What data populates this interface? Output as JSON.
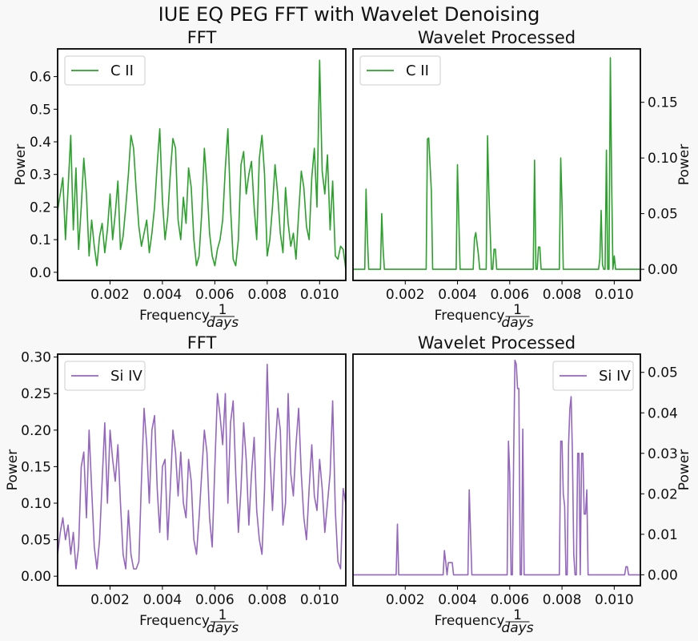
{
  "figure": {
    "title": "IUE EQ PEG FFT with Wavelet Denoising"
  },
  "colors": {
    "c2": "#2ca02c",
    "si4": "#9467bd"
  },
  "chart_data": [
    {
      "type": "line",
      "title": "FFT",
      "xlabel": "Frequency",
      "xlabel_fraction": {
        "num": "1",
        "den": "days"
      },
      "ylabel": "Power",
      "ylabel_side": "left",
      "xlim": [
        0.0,
        0.011
      ],
      "ylim": [
        -0.025,
        0.685
      ],
      "xticks": [
        0.002,
        0.004,
        0.006,
        0.008,
        0.01
      ],
      "xtick_labels": [
        "0.002",
        "0.004",
        "0.006",
        "0.008",
        "0.010"
      ],
      "yticks": [
        0.0,
        0.1,
        0.2,
        0.3,
        0.4,
        0.5,
        0.6
      ],
      "ytick_labels": [
        "0.0",
        "0.1",
        "0.2",
        "0.3",
        "0.4",
        "0.5",
        "0.6"
      ],
      "legend_position": "top-left",
      "series": [
        {
          "name": "C II",
          "color": "#2ca02c",
          "x": [
            0.0,
            0.0002,
            0.0003,
            0.0004,
            0.0005,
            0.0006,
            0.0007,
            0.0008,
            0.0009,
            0.001,
            0.0011,
            0.0012,
            0.0013,
            0.0014,
            0.0015,
            0.0016,
            0.0017,
            0.0018,
            0.0019,
            0.002,
            0.0021,
            0.0022,
            0.0023,
            0.0024,
            0.0025,
            0.0026,
            0.0027,
            0.0028,
            0.0029,
            0.003,
            0.0031,
            0.0032,
            0.0033,
            0.0034,
            0.0035,
            0.0036,
            0.0037,
            0.0038,
            0.0039,
            0.004,
            0.0041,
            0.0042,
            0.0043,
            0.0044,
            0.0045,
            0.0046,
            0.0047,
            0.0048,
            0.0049,
            0.005,
            0.0051,
            0.0052,
            0.0053,
            0.0054,
            0.0055,
            0.0056,
            0.0057,
            0.0058,
            0.0059,
            0.006,
            0.0061,
            0.0062,
            0.0063,
            0.0064,
            0.0065,
            0.0066,
            0.0067,
            0.0068,
            0.0069,
            0.007,
            0.0071,
            0.0072,
            0.0073,
            0.0074,
            0.0075,
            0.0076,
            0.0077,
            0.0078,
            0.0079,
            0.008,
            0.0081,
            0.0082,
            0.0083,
            0.0084,
            0.0085,
            0.0086,
            0.0087,
            0.0088,
            0.0089,
            0.009,
            0.0091,
            0.0092,
            0.0093,
            0.0094,
            0.0095,
            0.0096,
            0.0097,
            0.0098,
            0.0099,
            0.01,
            0.0101,
            0.0102,
            0.0103,
            0.0104,
            0.0105,
            0.0106,
            0.0107,
            0.0108,
            0.0109,
            0.011
          ],
          "y": [
            0.19,
            0.29,
            0.1,
            0.26,
            0.42,
            0.13,
            0.32,
            0.07,
            0.2,
            0.35,
            0.24,
            0.05,
            0.16,
            0.08,
            0.02,
            0.11,
            0.15,
            0.06,
            0.13,
            0.24,
            0.1,
            0.18,
            0.28,
            0.07,
            0.11,
            0.2,
            0.3,
            0.42,
            0.38,
            0.25,
            0.14,
            0.08,
            0.12,
            0.16,
            0.06,
            0.12,
            0.2,
            0.33,
            0.44,
            0.22,
            0.1,
            0.17,
            0.3,
            0.41,
            0.38,
            0.16,
            0.1,
            0.23,
            0.15,
            0.32,
            0.26,
            0.1,
            0.02,
            0.05,
            0.18,
            0.38,
            0.27,
            0.12,
            0.05,
            0.02,
            0.07,
            0.1,
            0.16,
            0.32,
            0.44,
            0.2,
            0.04,
            0.02,
            0.1,
            0.33,
            0.37,
            0.24,
            0.3,
            0.34,
            0.2,
            0.1,
            0.35,
            0.42,
            0.3,
            0.05,
            0.1,
            0.2,
            0.33,
            0.24,
            0.12,
            0.06,
            0.26,
            0.15,
            0.08,
            0.12,
            0.04,
            0.18,
            0.31,
            0.26,
            0.14,
            0.1,
            0.29,
            0.38,
            0.2,
            0.65,
            0.31,
            0.24,
            0.36,
            0.13,
            0.28,
            0.05,
            0.04,
            0.08,
            0.07,
            0.01
          ]
        }
      ]
    },
    {
      "type": "line",
      "title": "Wavelet Processed",
      "xlabel": "Frequency",
      "xlabel_fraction": {
        "num": "1",
        "den": "days"
      },
      "ylabel": "Power",
      "ylabel_side": "right",
      "xlim": [
        0.0,
        0.011
      ],
      "ylim": [
        -0.01,
        0.198
      ],
      "xticks": [
        0.002,
        0.004,
        0.006,
        0.008,
        0.01
      ],
      "xtick_labels": [
        "0.002",
        "0.004",
        "0.006",
        "0.008",
        "0.010"
      ],
      "yticks": [
        0.0,
        0.05,
        0.1,
        0.15
      ],
      "ytick_labels": [
        "0.00",
        "0.05",
        "0.10",
        "0.15"
      ],
      "legend_position": "top-left",
      "series": [
        {
          "name": "C II",
          "color": "#2ca02c",
          "x": [
            0.0,
            0.00045,
            0.0005,
            0.00055,
            0.0006,
            0.00105,
            0.0011,
            0.00115,
            0.0012,
            0.0028,
            0.00285,
            0.0029,
            0.003,
            0.00305,
            0.00395,
            0.004,
            0.00405,
            0.0041,
            0.0046,
            0.00465,
            0.0047,
            0.0048,
            0.00485,
            0.0051,
            0.00515,
            0.0052,
            0.0053,
            0.00535,
            0.0054,
            0.00545,
            0.0055,
            0.00555,
            0.0069,
            0.00695,
            0.007,
            0.00705,
            0.0071,
            0.00715,
            0.0072,
            0.00725,
            0.0079,
            0.00795,
            0.008,
            0.00805,
            0.0094,
            0.00945,
            0.0095,
            0.00955,
            0.0096,
            0.00965,
            0.0097,
            0.00975,
            0.0098,
            0.00985,
            0.0099,
            0.00995,
            0.01,
            0.01005,
            0.0101,
            0.01015,
            0.0102,
            0.01025,
            0.011
          ],
          "y": [
            0.0,
            0.0,
            0.072,
            0.03,
            0.0,
            0.0,
            0.05,
            0.02,
            0.0,
            0.0,
            0.117,
            0.118,
            0.07,
            0.0,
            0.0,
            0.094,
            0.045,
            0.0,
            0.0,
            0.028,
            0.033,
            0.013,
            0.0,
            0.0,
            0.12,
            0.07,
            0.0,
            0.0,
            0.018,
            0.018,
            0.0,
            0.0,
            0.0,
            0.098,
            0.0,
            0.0,
            0.02,
            0.02,
            0.0,
            0.0,
            0.0,
            0.1,
            0.06,
            0.0,
            0.0,
            0.01,
            0.053,
            0.004,
            0.0,
            0.0,
            0.107,
            0.0,
            0.0,
            0.19,
            0.08,
            0.0,
            0.012,
            0.0,
            0.0,
            0.0,
            0.0,
            0.0,
            0.0
          ]
        }
      ]
    },
    {
      "type": "line",
      "title": "FFT",
      "xlabel": "Frequency",
      "xlabel_fraction": {
        "num": "1",
        "den": "days"
      },
      "ylabel": "Power",
      "ylabel_side": "left",
      "xlim": [
        0.0,
        0.011
      ],
      "ylim": [
        -0.013,
        0.304
      ],
      "xticks": [
        0.002,
        0.004,
        0.006,
        0.008,
        0.01
      ],
      "xtick_labels": [
        "0.002",
        "0.004",
        "0.006",
        "0.008",
        "0.010"
      ],
      "yticks": [
        0.0,
        0.05,
        0.1,
        0.15,
        0.2,
        0.25,
        0.3
      ],
      "ytick_labels": [
        "0.00",
        "0.05",
        "0.10",
        "0.15",
        "0.20",
        "0.25",
        "0.30"
      ],
      "legend_position": "top-left",
      "series": [
        {
          "name": "Si IV",
          "color": "#9467bd",
          "x": [
            0.0,
            0.0001,
            0.0002,
            0.0003,
            0.0004,
            0.0005,
            0.0006,
            0.0007,
            0.0008,
            0.0009,
            0.001,
            0.0011,
            0.0012,
            0.0013,
            0.0014,
            0.0015,
            0.0016,
            0.0017,
            0.0018,
            0.0019,
            0.002,
            0.0021,
            0.0022,
            0.0023,
            0.0024,
            0.0025,
            0.0026,
            0.0027,
            0.0028,
            0.0029,
            0.003,
            0.0031,
            0.0032,
            0.0033,
            0.0034,
            0.0035,
            0.0036,
            0.0037,
            0.0038,
            0.0039,
            0.004,
            0.0041,
            0.0042,
            0.0043,
            0.0044,
            0.0045,
            0.0046,
            0.0047,
            0.0048,
            0.0049,
            0.005,
            0.0051,
            0.0052,
            0.0053,
            0.0054,
            0.0055,
            0.0056,
            0.0057,
            0.0058,
            0.0059,
            0.006,
            0.0061,
            0.0062,
            0.0063,
            0.0064,
            0.0065,
            0.0066,
            0.0067,
            0.0068,
            0.0069,
            0.007,
            0.0071,
            0.0072,
            0.0073,
            0.0074,
            0.0075,
            0.0076,
            0.0077,
            0.0078,
            0.0079,
            0.008,
            0.0081,
            0.0082,
            0.0083,
            0.0084,
            0.0085,
            0.0086,
            0.0087,
            0.0088,
            0.0089,
            0.009,
            0.0091,
            0.0092,
            0.0093,
            0.0094,
            0.0095,
            0.0096,
            0.0097,
            0.0098,
            0.0099,
            0.01,
            0.0101,
            0.0102,
            0.0103,
            0.0104,
            0.0105,
            0.0106,
            0.0107,
            0.0108,
            0.0109,
            0.011
          ],
          "y": [
            0.03,
            0.06,
            0.08,
            0.05,
            0.07,
            0.03,
            0.06,
            0.01,
            0.04,
            0.15,
            0.17,
            0.08,
            0.2,
            0.12,
            0.04,
            0.01,
            0.05,
            0.13,
            0.21,
            0.1,
            0.2,
            0.16,
            0.13,
            0.18,
            0.1,
            0.03,
            0.01,
            0.09,
            0.03,
            0.01,
            0.01,
            0.02,
            0.13,
            0.23,
            0.18,
            0.1,
            0.2,
            0.22,
            0.12,
            0.06,
            0.15,
            0.16,
            0.05,
            0.12,
            0.2,
            0.17,
            0.11,
            0.17,
            0.1,
            0.08,
            0.16,
            0.13,
            0.05,
            0.03,
            0.08,
            0.14,
            0.2,
            0.17,
            0.08,
            0.04,
            0.15,
            0.25,
            0.22,
            0.18,
            0.25,
            0.1,
            0.21,
            0.24,
            0.14,
            0.06,
            0.12,
            0.21,
            0.16,
            0.07,
            0.14,
            0.19,
            0.09,
            0.05,
            0.03,
            0.12,
            0.29,
            0.17,
            0.09,
            0.17,
            0.23,
            0.2,
            0.07,
            0.1,
            0.25,
            0.14,
            0.11,
            0.18,
            0.23,
            0.14,
            0.08,
            0.05,
            0.12,
            0.18,
            0.11,
            0.09,
            0.16,
            0.12,
            0.06,
            0.1,
            0.14,
            0.24,
            0.09,
            0.02,
            0.01,
            0.12,
            0.1
          ]
        }
      ]
    },
    {
      "type": "line",
      "title": "Wavelet Processed",
      "xlabel": "Frequency",
      "xlabel_fraction": {
        "num": "1",
        "den": "days"
      },
      "ylabel": "Power",
      "ylabel_side": "right",
      "xlim": [
        0.0,
        0.011
      ],
      "ylim": [
        -0.0027,
        0.0545
      ],
      "xticks": [
        0.002,
        0.004,
        0.006,
        0.008,
        0.01
      ],
      "xtick_labels": [
        "0.002",
        "0.004",
        "0.006",
        "0.008",
        "0.010"
      ],
      "yticks": [
        0.0,
        0.01,
        0.02,
        0.03,
        0.04,
        0.05
      ],
      "ytick_labels": [
        "0.00",
        "0.01",
        "0.02",
        "0.03",
        "0.04",
        "0.05"
      ],
      "legend_position": "top-right",
      "series": [
        {
          "name": "Si IV",
          "color": "#9467bd",
          "x": [
            0.0,
            0.00165,
            0.0017,
            0.00175,
            0.0018,
            0.00345,
            0.0035,
            0.00355,
            0.0036,
            0.00365,
            0.0037,
            0.0038,
            0.00385,
            0.0044,
            0.00445,
            0.0045,
            0.00455,
            0.0059,
            0.00595,
            0.006,
            0.00605,
            0.0061,
            0.00615,
            0.0062,
            0.00625,
            0.0063,
            0.00635,
            0.0064,
            0.00645,
            0.0065,
            0.00655,
            0.0066,
            0.00665,
            0.0079,
            0.00795,
            0.008,
            0.00805,
            0.0081,
            0.00815,
            0.0082,
            0.00825,
            0.0083,
            0.00835,
            0.0084,
            0.00845,
            0.0085,
            0.00855,
            0.0086,
            0.00865,
            0.0087,
            0.00875,
            0.0088,
            0.00885,
            0.0089,
            0.00895,
            0.009,
            0.00905,
            0.0091,
            0.0092,
            0.0104,
            0.01045,
            0.0105,
            0.01055,
            0.011
          ],
          "y": [
            0.0,
            0.0,
            0.0125,
            0.0,
            0.0,
            0.0,
            0.006,
            0.003,
            0.0,
            0.003,
            0.003,
            0.003,
            0.0,
            0.0,
            0.021,
            0.01,
            0.0,
            0.0,
            0.033,
            0.025,
            0.0,
            0.0,
            0.029,
            0.053,
            0.052,
            0.046,
            0.046,
            0.0,
            0.0,
            0.036,
            0.0,
            0.0,
            0.0,
            0.0,
            0.033,
            0.033,
            0.02,
            0.017,
            0.0,
            0.0,
            0.032,
            0.041,
            0.044,
            0.03,
            0.005,
            0.0,
            0.0,
            0.03,
            0.03,
            0.0,
            0.03,
            0.03,
            0.015,
            0.015,
            0.021,
            0.0,
            0.0,
            0.0,
            0.0,
            0.0,
            0.002,
            0.002,
            0.0,
            0.0
          ]
        }
      ]
    }
  ]
}
